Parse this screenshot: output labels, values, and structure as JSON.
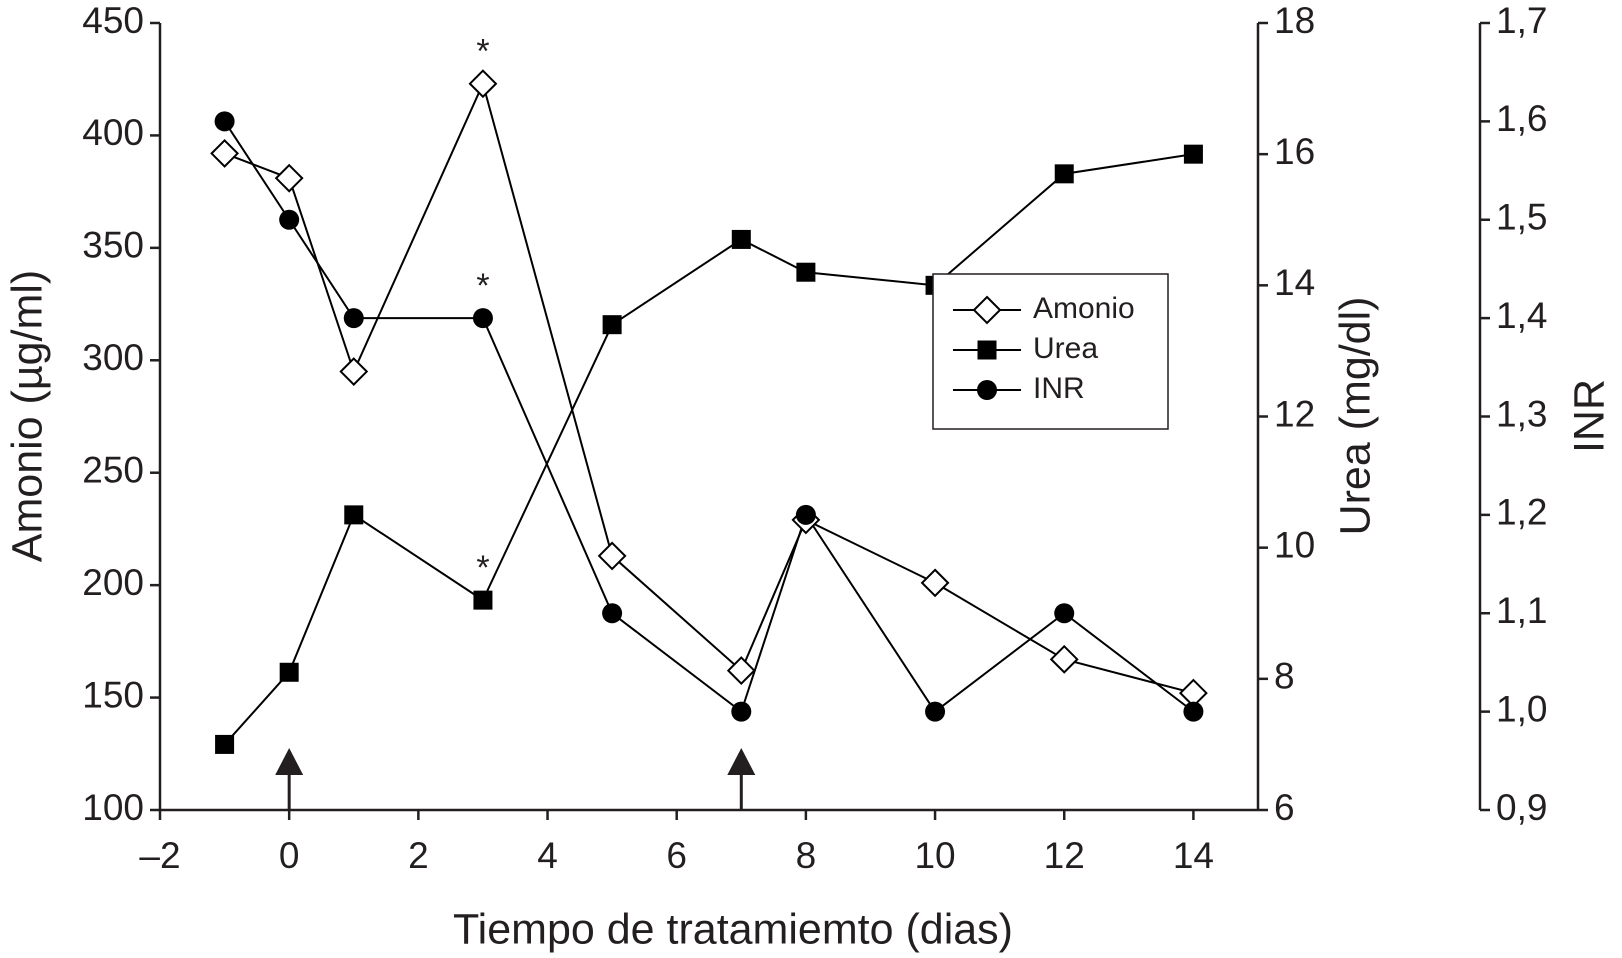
{
  "chart_data": {
    "type": "line",
    "x_label": "Tiempo de tratamiemto (dias)",
    "y_label": "Amonio (µg/ml)",
    "y2_label": "Urea (mg/dl)",
    "y3_label": "INR",
    "x": [
      -1,
      0,
      1,
      3,
      5,
      7,
      8,
      10,
      12,
      14
    ],
    "series": [
      {
        "name": "Amonio",
        "color": "#000000",
        "marker": "diamond-open",
        "axis": "y",
        "values": [
          392,
          381,
          295,
          423,
          213,
          162,
          229,
          201,
          167,
          152
        ]
      },
      {
        "name": "Urea",
        "color": "#000000",
        "marker": "square",
        "axis": "y2",
        "values": [
          7.0,
          8.1,
          10.5,
          9.2,
          13.4,
          14.7,
          14.2,
          14.0,
          15.7,
          16.0
        ]
      },
      {
        "name": "INR",
        "color": "#000000",
        "marker": "circle",
        "axis": "y3",
        "values": [
          1.6,
          1.5,
          1.4,
          1.4,
          1.1,
          1.0,
          1.2,
          1.0,
          1.1,
          1.0
        ]
      }
    ],
    "xlim": [
      -2,
      15
    ],
    "xticks": [
      {
        "value": -2,
        "label": "–2"
      },
      0,
      2,
      4,
      6,
      8,
      10,
      12,
      14
    ],
    "ylim": [
      100,
      450
    ],
    "yticks": [
      100,
      150,
      200,
      250,
      300,
      350,
      400,
      450
    ],
    "y2lim": [
      6,
      18
    ],
    "y2ticks": [
      6,
      8,
      10,
      12,
      14,
      16,
      18
    ],
    "y3lim": [
      0.9,
      1.7
    ],
    "y3ticks": [
      {
        "value": 0.9,
        "label": "0,9"
      },
      {
        "value": 1.0,
        "label": "1,0"
      },
      {
        "value": 1.1,
        "label": "1,1"
      },
      {
        "value": 1.2,
        "label": "1,2"
      },
      {
        "value": 1.3,
        "label": "1,3"
      },
      {
        "value": 1.4,
        "label": "1,4"
      },
      {
        "value": 1.5,
        "label": "1,5"
      },
      {
        "value": 1.6,
        "label": "1,6"
      },
      {
        "value": 1.7,
        "label": "1,7"
      }
    ],
    "annotations": [
      {
        "text": "*",
        "x": 3,
        "y": 423,
        "axis": "y"
      },
      {
        "text": "*",
        "x": 3,
        "y": 1.4,
        "axis": "y3"
      },
      {
        "text": "*",
        "x": 3,
        "y": 9.2,
        "axis": "y2"
      }
    ],
    "arrows": [
      0,
      7
    ],
    "legend": "center right",
    "grid": false
  }
}
